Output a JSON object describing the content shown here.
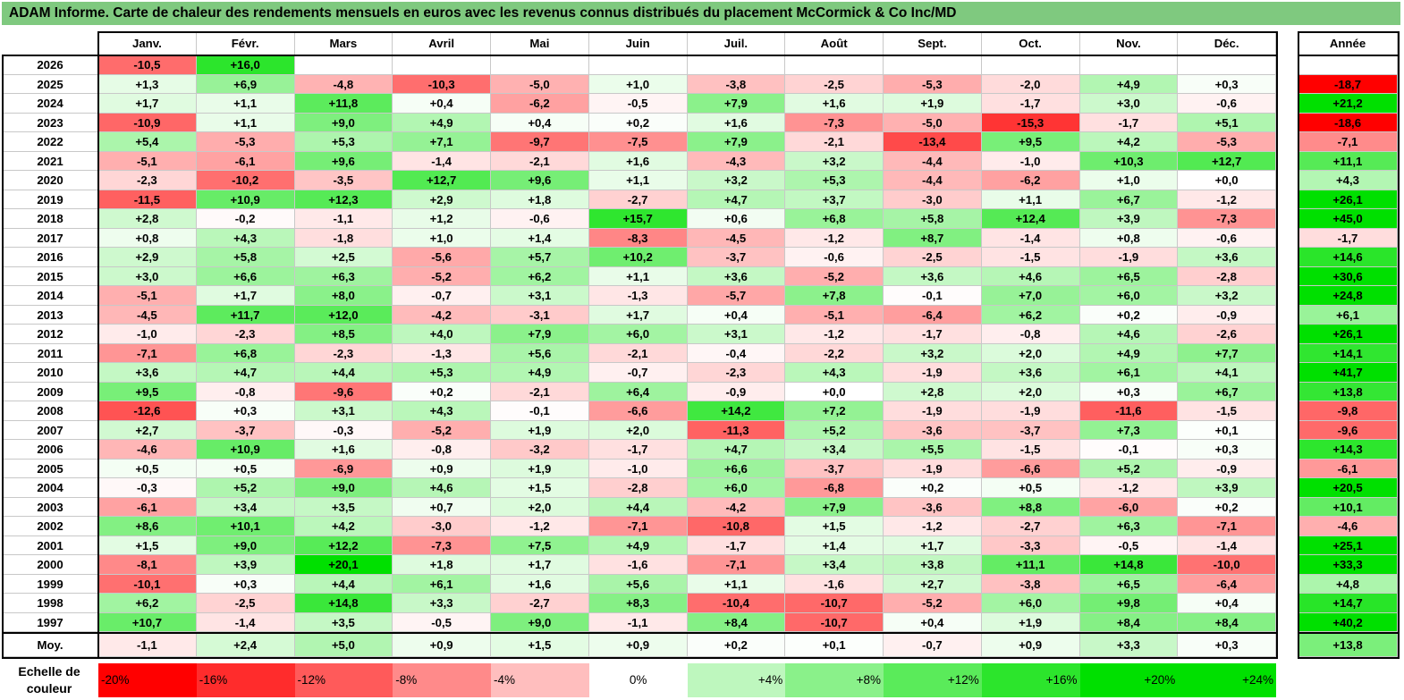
{
  "title": "ADAM Informe. Carte de chaleur des rendements mensuels en euros avec les revenus connus distribués du placement McCormick & Co Inc/MD",
  "year_header": "Année",
  "avg_label": "Moy.",
  "scale_label_line1": "Echelle de",
  "scale_label_line2": "couleur",
  "colors": {
    "neg_max": "#ff0000",
    "neutral": "#ffffff",
    "pos_max": "#00e000",
    "title_bg": "#7fc97f"
  },
  "chart_data": {
    "type": "heatmap",
    "title": "ADAM Informe. Carte de chaleur des rendements mensuels en euros avec les revenus connus distribués du placement McCormick & Co Inc/MD",
    "x_labels": [
      "Janv.",
      "Févr.",
      "Mars",
      "Avril",
      "Mai",
      "Juin",
      "Juil.",
      "Août",
      "Sept.",
      "Oct.",
      "Nov.",
      "Déc."
    ],
    "y_labels": [
      "2026",
      "2025",
      "2024",
      "2023",
      "2022",
      "2021",
      "2020",
      "2019",
      "2018",
      "2017",
      "2016",
      "2015",
      "2014",
      "2013",
      "2012",
      "2011",
      "2010",
      "2009",
      "2008",
      "2007",
      "2006",
      "2005",
      "2004",
      "2003",
      "2002",
      "2001",
      "2000",
      "1999",
      "1998",
      "1997"
    ],
    "values": [
      [
        -10.5,
        16.0,
        null,
        null,
        null,
        null,
        null,
        null,
        null,
        null,
        null,
        null
      ],
      [
        1.3,
        6.9,
        -4.8,
        -10.3,
        -5.0,
        1.0,
        -3.8,
        -2.5,
        -5.3,
        -2.0,
        4.9,
        0.3
      ],
      [
        1.7,
        1.1,
        11.8,
        0.4,
        -6.2,
        -0.5,
        7.9,
        1.6,
        1.9,
        -1.7,
        3.0,
        -0.6
      ],
      [
        -10.9,
        1.1,
        9.0,
        4.9,
        0.4,
        0.2,
        1.6,
        -7.3,
        -5.0,
        -15.3,
        -1.7,
        5.1
      ],
      [
        5.4,
        -5.3,
        5.3,
        7.1,
        -9.7,
        -7.5,
        7.9,
        -2.1,
        -13.4,
        9.5,
        4.2,
        -5.3
      ],
      [
        -5.1,
        -6.1,
        9.6,
        -1.4,
        -2.1,
        1.6,
        -4.3,
        3.2,
        -4.4,
        -1.0,
        10.3,
        12.7
      ],
      [
        -2.3,
        -10.2,
        -3.5,
        12.7,
        9.6,
        1.1,
        3.2,
        5.3,
        -4.4,
        -6.2,
        1.0,
        0.0
      ],
      [
        -11.5,
        10.9,
        12.3,
        2.9,
        1.8,
        -2.7,
        4.7,
        3.7,
        -3.0,
        1.1,
        6.7,
        -1.2
      ],
      [
        2.8,
        -0.2,
        -1.1,
        1.2,
        -0.6,
        15.7,
        0.6,
        6.8,
        5.8,
        12.4,
        3.9,
        -7.3
      ],
      [
        0.8,
        4.3,
        -1.8,
        1.0,
        1.4,
        -8.3,
        -4.5,
        -1.2,
        8.7,
        -1.4,
        0.8,
        -0.6
      ],
      [
        2.9,
        5.8,
        2.5,
        -5.6,
        5.7,
        10.2,
        -3.7,
        -0.6,
        -2.5,
        -1.5,
        -1.9,
        3.6
      ],
      [
        3.0,
        6.6,
        6.3,
        -5.2,
        6.2,
        1.1,
        3.6,
        -5.2,
        3.6,
        4.6,
        6.5,
        -2.8
      ],
      [
        -5.1,
        1.7,
        8.0,
        -0.7,
        3.1,
        -1.3,
        -5.7,
        7.8,
        -0.1,
        7.0,
        6.0,
        3.2
      ],
      [
        -4.5,
        11.7,
        12.0,
        -4.2,
        -3.1,
        1.7,
        0.4,
        -5.1,
        -6.4,
        6.2,
        0.2,
        -0.9
      ],
      [
        -1.0,
        -2.3,
        8.5,
        4.0,
        7.9,
        6.0,
        3.1,
        -1.2,
        -1.7,
        -0.8,
        4.6,
        -2.6
      ],
      [
        -7.1,
        6.8,
        -2.3,
        -1.3,
        5.6,
        -2.1,
        -0.4,
        -2.2,
        3.2,
        2.0,
        4.9,
        7.7
      ],
      [
        3.6,
        4.7,
        4.4,
        5.3,
        4.9,
        -0.7,
        -2.3,
        4.3,
        -1.9,
        3.6,
        6.1,
        4.1
      ],
      [
        9.5,
        -0.8,
        -9.6,
        0.2,
        -2.1,
        6.4,
        -0.9,
        0.0,
        2.8,
        2.0,
        0.3,
        6.7
      ],
      [
        -12.6,
        0.3,
        3.1,
        4.3,
        -0.1,
        -6.6,
        14.2,
        7.2,
        -1.9,
        -1.9,
        -11.6,
        -1.5
      ],
      [
        2.7,
        -3.7,
        -0.3,
        -5.2,
        1.9,
        2.0,
        -11.3,
        5.2,
        -3.6,
        -3.7,
        7.3,
        0.1
      ],
      [
        -4.6,
        10.9,
        1.6,
        -0.8,
        -3.2,
        -1.7,
        4.7,
        3.4,
        5.5,
        -1.5,
        -0.1,
        0.3
      ],
      [
        0.5,
        0.5,
        -6.9,
        0.9,
        1.9,
        -1.0,
        6.6,
        -3.7,
        -1.9,
        -6.6,
        5.2,
        -0.9
      ],
      [
        -0.3,
        5.2,
        9.0,
        4.6,
        1.5,
        -2.8,
        6.0,
        -6.8,
        0.2,
        0.5,
        -1.2,
        3.9
      ],
      [
        -6.1,
        3.4,
        3.5,
        0.7,
        2.0,
        4.4,
        -4.2,
        7.9,
        -3.6,
        8.8,
        -6.0,
        0.2
      ],
      [
        8.6,
        10.1,
        4.2,
        -3.0,
        -1.2,
        -7.1,
        -10.8,
        1.5,
        -1.2,
        -2.7,
        6.3,
        -7.1
      ],
      [
        1.5,
        9.0,
        12.2,
        -7.3,
        7.5,
        4.9,
        -1.7,
        1.4,
        1.7,
        -3.3,
        -0.5,
        -1.4
      ],
      [
        -8.1,
        3.9,
        20.1,
        1.8,
        1.7,
        -1.6,
        -7.1,
        3.4,
        3.8,
        11.1,
        14.8,
        -10.0
      ],
      [
        -10.1,
        0.3,
        4.4,
        6.1,
        1.6,
        5.6,
        1.1,
        -1.6,
        2.7,
        -3.8,
        6.5,
        -6.4
      ],
      [
        6.2,
        -2.5,
        14.8,
        3.3,
        -2.7,
        8.3,
        -10.4,
        -10.7,
        -5.2,
        6.0,
        9.8,
        0.4
      ],
      [
        10.7,
        -1.4,
        3.5,
        -0.5,
        9.0,
        -1.1,
        8.4,
        -10.7,
        0.4,
        1.9,
        8.4,
        8.4
      ]
    ],
    "year_totals": [
      null,
      -18.7,
      21.2,
      -18.6,
      -7.1,
      11.1,
      4.3,
      26.1,
      45.0,
      -1.7,
      14.6,
      30.6,
      24.8,
      6.1,
      26.1,
      14.1,
      41.7,
      13.8,
      -9.8,
      -9.6,
      14.3,
      -6.1,
      20.5,
      10.1,
      -4.6,
      25.1,
      33.3,
      4.8,
      14.7,
      40.2
    ],
    "averages": [
      -1.1,
      2.4,
      5.0,
      0.9,
      1.5,
      0.9,
      0.2,
      0.1,
      -0.7,
      0.9,
      3.3,
      0.3
    ],
    "average_total": 13.8,
    "color_scale": [
      {
        "label": "-20%",
        "value": -20
      },
      {
        "label": "-16%",
        "value": -16
      },
      {
        "label": "-12%",
        "value": -12
      },
      {
        "label": "-8%",
        "value": -8
      },
      {
        "label": "-4%",
        "value": -4
      },
      {
        "label": "0%",
        "value": 0
      },
      {
        "label": "+4%",
        "value": 4
      },
      {
        "label": "+8%",
        "value": 8
      },
      {
        "label": "+12%",
        "value": 12
      },
      {
        "label": "+16%",
        "value": 16
      },
      {
        "label": "+20%",
        "value": 20
      },
      {
        "label": "+24%",
        "value": 24
      }
    ]
  }
}
